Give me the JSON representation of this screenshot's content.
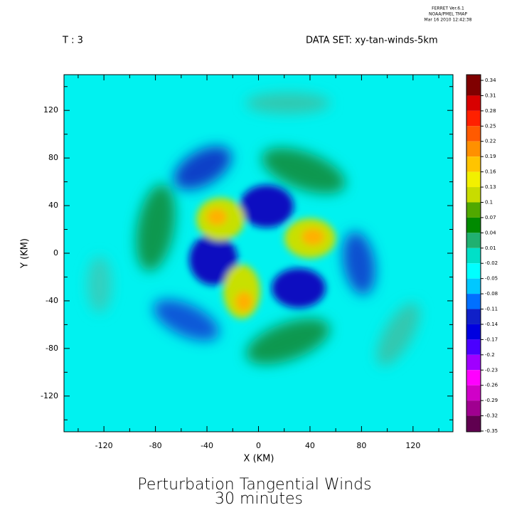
{
  "header": {
    "program": "FERRET  Ver.6.1",
    "org": "NOAA/PMEL TMAP",
    "timestamp": "Mar 16 2010 12:42:38",
    "time_step": "T : 3",
    "dataset": "DATA SET: xy-tan-winds-5km"
  },
  "chart_data": {
    "type": "heatmap",
    "title": "Perturbation Tangential Winds",
    "subtitle": "30 minutes",
    "x_label": "X (KM)",
    "y_label": "Y (KM)",
    "xlim": [
      -151,
      151
    ],
    "ylim": [
      -150,
      150
    ],
    "xticks": [
      -120,
      -80,
      -40,
      0,
      40,
      80,
      120
    ],
    "yticks": [
      -120,
      -80,
      -40,
      0,
      40,
      80,
      120
    ],
    "xminor": [
      -140,
      -100,
      -60,
      -20,
      20,
      60,
      100,
      140
    ],
    "yminor": [
      -140,
      -100,
      -60,
      -20,
      20,
      60,
      100,
      140
    ],
    "colorbar_levels": [
      0.34,
      0.31,
      0.28,
      0.25,
      0.22,
      0.19,
      0.16,
      0.13,
      0.1,
      0.07,
      0.04,
      0.01,
      -0.02,
      -0.05,
      -0.08,
      -0.11,
      -0.14,
      -0.17,
      -0.2,
      -0.23,
      -0.26,
      -0.29,
      -0.32,
      -0.35
    ],
    "colorbar_colors": [
      "#800000",
      "#d80000",
      "#ff2000",
      "#ff5a00",
      "#ff9000",
      "#ffc400",
      "#f2f000",
      "#c8dc00",
      "#50a800",
      "#008a00",
      "#20b070",
      "#00e0c8",
      "#00ffff",
      "#00c8ff",
      "#0070ff",
      "#1020c8",
      "#0000e0",
      "#4a00ff",
      "#a000ff",
      "#ff00ff",
      "#d000c8",
      "#a00090",
      "#600050"
    ]
  }
}
